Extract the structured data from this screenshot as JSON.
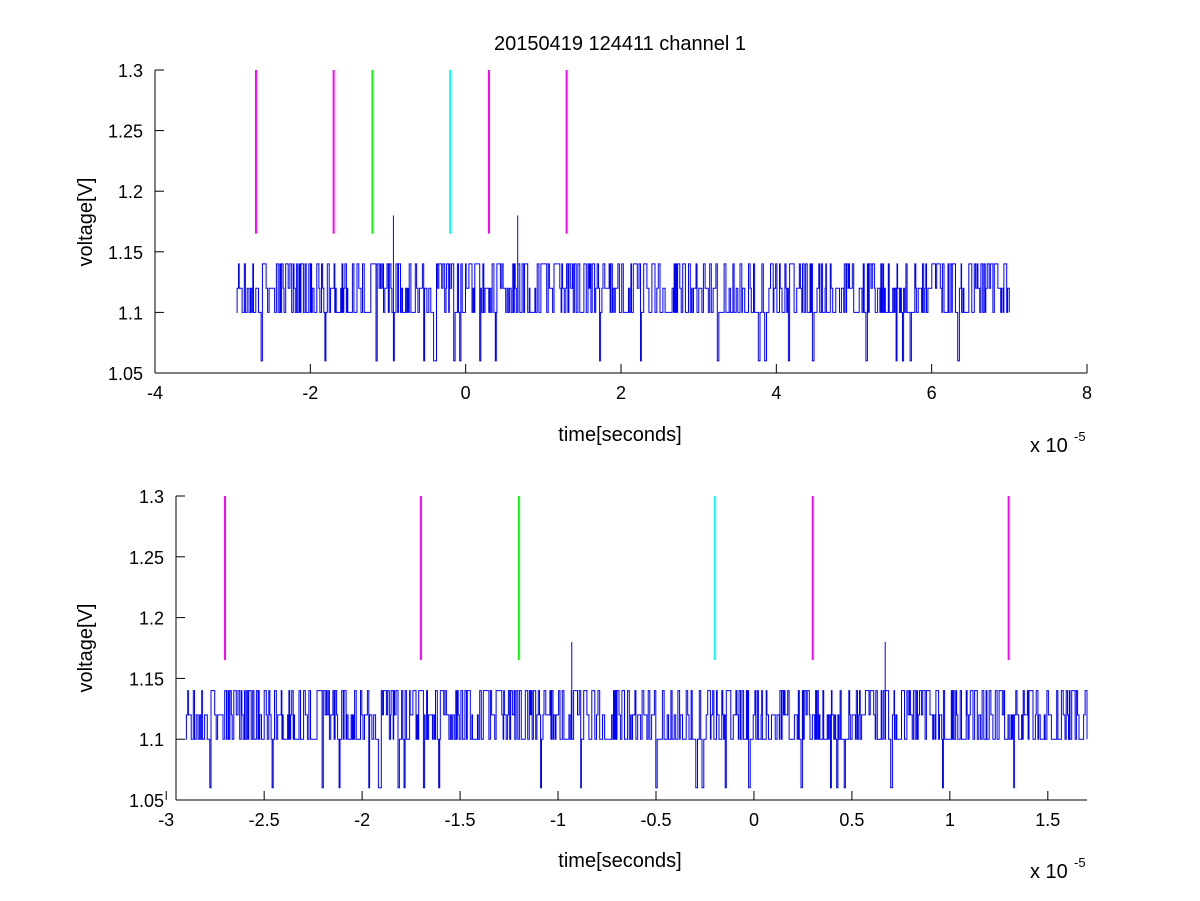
{
  "chart_data": [
    {
      "type": "line",
      "title": "20150419 124411 channel 1",
      "xlabel": "time[seconds]",
      "ylabel": "voltage[V]",
      "xlim": [
        -4,
        8
      ],
      "ylim": [
        1.05,
        1.3
      ],
      "xticks": [
        -4,
        -2,
        0,
        2,
        4,
        6,
        8
      ],
      "xtick_labels": [
        "-4",
        "-2",
        "0",
        "2",
        "4",
        "6",
        "8"
      ],
      "yticks": [
        1.05,
        1.1,
        1.15,
        1.2,
        1.25,
        1.3
      ],
      "ytick_labels": [
        "1.05",
        "1.1",
        "1.15",
        "1.2",
        "1.25",
        "1.3"
      ],
      "x_multiplier": {
        "base": "x 10",
        "exponent": "-5"
      },
      "grid": false,
      "signal": {
        "color": "#0000ff",
        "x_start": -2.95,
        "x_end": 7.0,
        "levels": [
          1.06,
          1.1,
          1.12,
          1.14
        ],
        "spikes": [
          {
            "x": -0.93,
            "y": 1.18
          },
          {
            "x": 0.67,
            "y": 1.18
          }
        ]
      },
      "markers": [
        {
          "x": -2.7,
          "y0": 1.165,
          "y1": 1.3,
          "color": "#ff00ff"
        },
        {
          "x": -1.7,
          "y0": 1.165,
          "y1": 1.3,
          "color": "#ff00ff"
        },
        {
          "x": -1.2,
          "y0": 1.165,
          "y1": 1.3,
          "color": "#00ff00"
        },
        {
          "x": -0.2,
          "y0": 1.165,
          "y1": 1.3,
          "color": "#00ffff"
        },
        {
          "x": 0.3,
          "y0": 1.165,
          "y1": 1.3,
          "color": "#ff00ff"
        },
        {
          "x": 1.3,
          "y0": 1.165,
          "y1": 1.3,
          "color": "#ff00ff"
        }
      ]
    },
    {
      "type": "line",
      "title": "",
      "xlabel": "time[seconds]",
      "ylabel": "voltage[V]",
      "xlim": [
        -2.95,
        1.7
      ],
      "ylim": [
        1.05,
        1.3
      ],
      "xticks": [
        -3,
        -2.5,
        -2,
        -1.5,
        -1,
        -0.5,
        0,
        0.5,
        1,
        1.5
      ],
      "xtick_labels": [
        "-3",
        "-2.5",
        "-2",
        "-1.5",
        "-1",
        "-0.5",
        "0",
        "0.5",
        "1",
        "1.5"
      ],
      "yticks": [
        1.05,
        1.1,
        1.15,
        1.2,
        1.25,
        1.3
      ],
      "ytick_labels": [
        "1.05",
        "1.1",
        "1.15",
        "1.2",
        "1.25",
        "1.3"
      ],
      "x_multiplier": {
        "base": "x 10",
        "exponent": "-5"
      },
      "grid": false,
      "signal": {
        "color": "#0000ff",
        "x_start": -2.9,
        "x_end": 1.7,
        "levels": [
          1.06,
          1.1,
          1.12,
          1.14
        ],
        "spikes": [
          {
            "x": -0.93,
            "y": 1.18
          },
          {
            "x": 0.67,
            "y": 1.18
          }
        ]
      },
      "markers": [
        {
          "x": -2.7,
          "y0": 1.165,
          "y1": 1.3,
          "color": "#ff00ff"
        },
        {
          "x": -1.7,
          "y0": 1.165,
          "y1": 1.3,
          "color": "#ff00ff"
        },
        {
          "x": -1.2,
          "y0": 1.165,
          "y1": 1.3,
          "color": "#00ff00"
        },
        {
          "x": -0.2,
          "y0": 1.165,
          "y1": 1.3,
          "color": "#00ffff"
        },
        {
          "x": 0.3,
          "y0": 1.165,
          "y1": 1.3,
          "color": "#ff00ff"
        },
        {
          "x": 1.3,
          "y0": 1.165,
          "y1": 1.3,
          "color": "#ff00ff"
        }
      ]
    }
  ]
}
